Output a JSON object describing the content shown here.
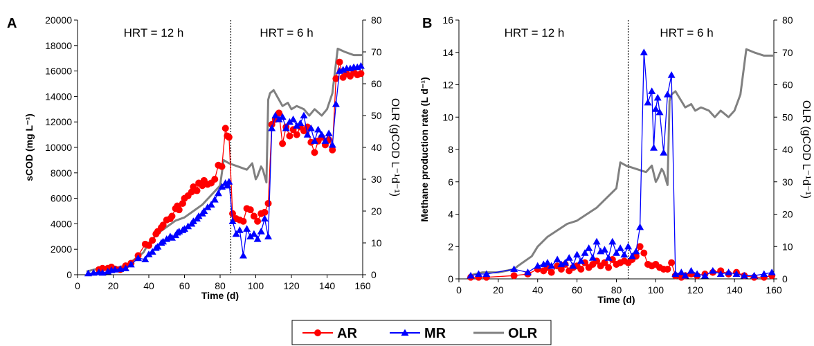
{
  "legend": [
    {
      "name": "AR",
      "color": "#ff0000",
      "marker": "circle"
    },
    {
      "name": "MR",
      "color": "#0000ff",
      "marker": "triangle"
    },
    {
      "name": "OLR",
      "color": "#808080",
      "marker": "none"
    }
  ],
  "chart_data": [
    {
      "type": "line",
      "panel_label": "A",
      "xlabel": "Time (d)",
      "ylabel": "sCOD (mg L⁻¹)",
      "y2label": "OLR (gCOD L⁻¹d⁻¹)",
      "xlim": [
        0,
        160
      ],
      "ylim": [
        0,
        20000
      ],
      "y2lim": [
        0,
        80
      ],
      "xticks": [
        "0",
        "20",
        "40",
        "60",
        "80",
        "100",
        "120",
        "140",
        "160"
      ],
      "yticks": [
        "0",
        "2000",
        "4000",
        "6000",
        "8000",
        "10000",
        "12000",
        "14000",
        "16000",
        "18000",
        "20000"
      ],
      "y2ticks": [
        "0",
        "10",
        "20",
        "30",
        "40",
        "50",
        "60",
        "70",
        "80"
      ],
      "divider_x": 86,
      "annotations": [
        "HRT = 12 h",
        "HRT = 6 h"
      ],
      "legend": "bottom-center",
      "grid": false,
      "series": [
        {
          "name": "AR",
          "axis": "left",
          "color": "#ff0000",
          "marker": "circle",
          "x": [
            12,
            14,
            17,
            19,
            21,
            24,
            27,
            30,
            34,
            38,
            40,
            42,
            44,
            45,
            47,
            48,
            50,
            52,
            53,
            55,
            56,
            57,
            59,
            60,
            62,
            64,
            65,
            67,
            68,
            70,
            71,
            73,
            75,
            77,
            79,
            81,
            83,
            84,
            85,
            87,
            89,
            91,
            93,
            95,
            97,
            99,
            101,
            103,
            105,
            107,
            109,
            111,
            113,
            115,
            117,
            119,
            121,
            123,
            125,
            127,
            129,
            131,
            133,
            135,
            137,
            139,
            141,
            143,
            145,
            147,
            149,
            151,
            153,
            155,
            157,
            159
          ],
          "y": [
            400,
            500,
            500,
            600,
            450,
            400,
            700,
            900,
            1500,
            2400,
            2300,
            2700,
            3200,
            3400,
            3700,
            3900,
            4300,
            4400,
            4600,
            5200,
            5400,
            5100,
            5600,
            6000,
            6200,
            6500,
            6900,
            6600,
            7200,
            7000,
            7400,
            7100,
            7200,
            7500,
            8600,
            8500,
            11500,
            10900,
            10800,
            4800,
            4400,
            4300,
            4200,
            5200,
            5100,
            4600,
            4200,
            4800,
            4900,
            5600,
            11800,
            12200,
            12700,
            10300,
            11600,
            10900,
            11400,
            11000,
            11600,
            11300,
            11600,
            10400,
            9600,
            10500,
            10800,
            10200,
            10600,
            9800,
            15400,
            16700,
            15500,
            15800,
            15600,
            15900,
            15700,
            15800
          ]
        },
        {
          "name": "MR",
          "axis": "left",
          "color": "#0000ff",
          "marker": "triangle",
          "x": [
            6,
            9,
            12,
            14,
            17,
            19,
            21,
            24,
            27,
            30,
            34,
            38,
            40,
            42,
            44,
            45,
            47,
            48,
            50,
            52,
            53,
            55,
            56,
            57,
            59,
            60,
            62,
            64,
            65,
            67,
            68,
            70,
            71,
            73,
            75,
            77,
            79,
            81,
            83,
            84,
            85,
            87,
            89,
            91,
            93,
            95,
            97,
            99,
            101,
            103,
            105,
            107,
            109,
            111,
            113,
            115,
            117,
            119,
            121,
            123,
            125,
            127,
            129,
            131,
            133,
            135,
            137,
            139,
            141,
            143,
            145,
            147,
            149,
            151,
            153,
            155,
            157,
            159
          ],
          "y": [
            100,
            150,
            200,
            150,
            250,
            350,
            400,
            450,
            500,
            800,
            1300,
            1200,
            1600,
            1800,
            2100,
            2200,
            2500,
            2600,
            2800,
            3000,
            2900,
            3100,
            3300,
            3400,
            3500,
            3600,
            3800,
            4000,
            4200,
            4400,
            4600,
            4800,
            5000,
            5300,
            5500,
            5900,
            6400,
            6900,
            7200,
            7000,
            7300,
            4200,
            3200,
            3500,
            1500,
            3600,
            3000,
            3200,
            2800,
            3400,
            4400,
            3000,
            11500,
            12500,
            12200,
            12400,
            11500,
            12000,
            12200,
            11700,
            11900,
            12500,
            11000,
            11500,
            10500,
            11400,
            11000,
            10500,
            11100,
            10200,
            13400,
            16000,
            16100,
            16200,
            16200,
            16300,
            16300,
            16400
          ]
        },
        {
          "name": "OLR",
          "axis": "right",
          "color": "#808080",
          "marker": "none",
          "x": [
            5,
            12,
            20,
            28,
            30,
            37,
            40,
            45,
            50,
            55,
            60,
            65,
            70,
            75,
            80,
            82,
            85,
            90,
            95,
            98,
            100,
            101,
            103,
            104,
            106,
            107,
            108,
            110,
            113,
            115,
            118,
            120,
            123,
            127,
            130,
            133,
            137,
            140,
            143,
            146,
            150,
            155,
            160
          ],
          "y": [
            1,
            2,
            2,
            3,
            4,
            7,
            10,
            13,
            15,
            17,
            18,
            20,
            22,
            25,
            28,
            36,
            35,
            34,
            33,
            35,
            30,
            31,
            34,
            33,
            29,
            55,
            57,
            58,
            55,
            53,
            54,
            52,
            53,
            52,
            50,
            52,
            50,
            52,
            57,
            71,
            70,
            69,
            69
          ]
        }
      ]
    },
    {
      "type": "line",
      "panel_label": "B",
      "xlabel": "Time (d)",
      "ylabel": "Methane production rate (L d⁻¹)",
      "y2label": "OLR (gCOD L⁻¹d⁻¹)",
      "xlim": [
        0,
        160
      ],
      "ylim": [
        0,
        16
      ],
      "y2lim": [
        0,
        80
      ],
      "xticks": [
        "0",
        "20",
        "40",
        "60",
        "80",
        "100",
        "120",
        "140",
        "160"
      ],
      "yticks": [
        "0",
        "2",
        "4",
        "6",
        "8",
        "10",
        "12",
        "14",
        "16"
      ],
      "y2ticks": [
        "0",
        "10",
        "20",
        "30",
        "40",
        "50",
        "60",
        "70",
        "80"
      ],
      "divider_x": 86,
      "annotations": [
        "HRT = 12 h",
        "HRT = 6 h"
      ],
      "legend": "bottom-center",
      "grid": false,
      "series": [
        {
          "name": "AR",
          "axis": "left",
          "color": "#ff0000",
          "marker": "circle",
          "x": [
            6,
            10,
            14,
            28,
            35,
            40,
            43,
            45,
            47,
            50,
            52,
            54,
            56,
            58,
            60,
            62,
            64,
            66,
            68,
            70,
            72,
            74,
            76,
            78,
            80,
            82,
            84,
            86,
            88,
            90,
            92,
            94,
            96,
            98,
            100,
            102,
            104,
            106,
            108,
            110,
            113,
            115,
            118,
            121,
            125,
            129,
            133,
            137,
            141,
            145,
            150,
            155,
            159
          ],
          "y": [
            0.1,
            0.1,
            0.1,
            0.2,
            0.3,
            0.6,
            0.5,
            0.7,
            0.4,
            0.8,
            0.6,
            0.9,
            0.5,
            0.7,
            0.8,
            0.6,
            1.0,
            0.7,
            0.9,
            1.1,
            0.8,
            1.0,
            0.7,
            1.2,
            0.9,
            1.0,
            1.1,
            1.0,
            1.2,
            1.4,
            2.0,
            1.6,
            0.9,
            0.8,
            0.9,
            0.7,
            0.6,
            0.6,
            1.0,
            0.2,
            0.1,
            0.2,
            0.3,
            0.2,
            0.3,
            0.4,
            0.5,
            0.3,
            0.4,
            0.2,
            0.1,
            0.1,
            0.2
          ]
        },
        {
          "name": "MR",
          "axis": "left",
          "color": "#0000ff",
          "marker": "triangle",
          "x": [
            6,
            10,
            14,
            28,
            35,
            40,
            43,
            45,
            47,
            50,
            52,
            54,
            56,
            58,
            60,
            62,
            64,
            66,
            68,
            70,
            72,
            74,
            76,
            78,
            80,
            82,
            84,
            86,
            88,
            90,
            92,
            94,
            96,
            98,
            99,
            100,
            101,
            102,
            104,
            106,
            108,
            110,
            113,
            115,
            118,
            121,
            125,
            129,
            133,
            137,
            141,
            145,
            150,
            155,
            159
          ],
          "y": [
            0.2,
            0.3,
            0.3,
            0.6,
            0.4,
            0.8,
            0.9,
            1.0,
            0.8,
            1.2,
            0.9,
            1.0,
            1.3,
            0.8,
            1.5,
            1.1,
            1.6,
            1.9,
            1.3,
            2.3,
            1.7,
            1.8,
            1.3,
            2.3,
            1.6,
            1.9,
            1.5,
            2.0,
            1.4,
            1.7,
            3.2,
            14.0,
            10.9,
            11.6,
            8.1,
            10.5,
            11.2,
            10.3,
            7.8,
            11.4,
            12.6,
            0.3,
            0.4,
            0.2,
            0.5,
            0.3,
            0.2,
            0.5,
            0.3,
            0.4,
            0.3,
            0.2,
            0.2,
            0.3,
            0.4
          ]
        },
        {
          "name": "OLR",
          "axis": "right",
          "color": "#808080",
          "marker": "none",
          "x": [
            5,
            12,
            20,
            28,
            30,
            37,
            40,
            45,
            50,
            55,
            60,
            65,
            70,
            75,
            80,
            82,
            85,
            90,
            95,
            98,
            100,
            101,
            103,
            104,
            106,
            107,
            108,
            110,
            113,
            115,
            118,
            120,
            123,
            127,
            130,
            133,
            137,
            140,
            143,
            146,
            150,
            155,
            160
          ],
          "y": [
            1,
            2,
            2,
            3,
            4,
            7,
            10,
            13,
            15,
            17,
            18,
            20,
            22,
            25,
            28,
            36,
            35,
            34,
            33,
            35,
            30,
            31,
            34,
            33,
            29,
            55,
            57,
            58,
            55,
            53,
            54,
            52,
            53,
            52,
            50,
            52,
            50,
            52,
            57,
            71,
            70,
            69,
            69
          ]
        }
      ]
    }
  ]
}
